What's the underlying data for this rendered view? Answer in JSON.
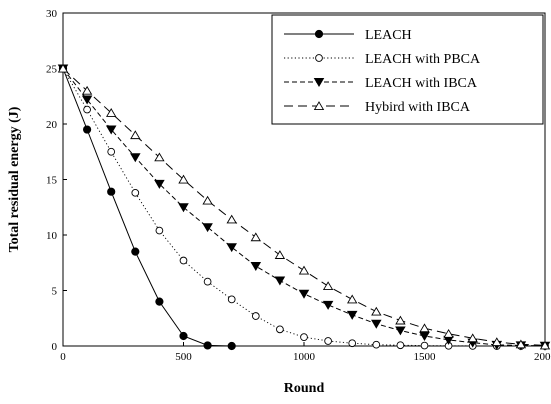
{
  "chart_data": {
    "type": "line",
    "title": "",
    "xlabel": "Round",
    "ylabel": "Total residual energy (J)",
    "xlim": [
      0,
      2000
    ],
    "ylim": [
      0,
      30
    ],
    "xticks": [
      0,
      500,
      1000,
      1500,
      2000
    ],
    "yticks": [
      0,
      5,
      10,
      15,
      20,
      25,
      30
    ],
    "grid": false,
    "legend_position": "top-right",
    "series": [
      {
        "name": "LEACH",
        "line": "solid",
        "marker": "filled-circle",
        "x": [
          0,
          100,
          200,
          300,
          400,
          500,
          600,
          700
        ],
        "y": [
          25.0,
          19.5,
          13.9,
          8.5,
          4.0,
          0.9,
          0.05,
          0.0
        ]
      },
      {
        "name": "LEACH with PBCA",
        "line": "dotted",
        "marker": "open-circle",
        "x": [
          0,
          100,
          200,
          300,
          400,
          500,
          600,
          700,
          800,
          900,
          1000,
          1100,
          1200,
          1300,
          1400,
          1500,
          1600,
          1700,
          1800,
          1900,
          2000
        ],
        "y": [
          25.0,
          21.3,
          17.5,
          13.8,
          10.4,
          7.7,
          5.8,
          4.2,
          2.7,
          1.5,
          0.8,
          0.45,
          0.25,
          0.12,
          0.07,
          0.04,
          0.02,
          0.01,
          0.0,
          0.0,
          0.0
        ]
      },
      {
        "name": "LEACH with IBCA",
        "line": "dashed",
        "marker": "filled-triangle-down",
        "x": [
          0,
          100,
          200,
          300,
          400,
          500,
          600,
          700,
          800,
          900,
          1000,
          1100,
          1200,
          1300,
          1400,
          1500,
          1600,
          1700,
          1800,
          1900,
          2000
        ],
        "y": [
          25.0,
          22.2,
          19.5,
          17.0,
          14.6,
          12.5,
          10.7,
          8.9,
          7.2,
          5.9,
          4.7,
          3.7,
          2.8,
          2.0,
          1.4,
          0.9,
          0.55,
          0.3,
          0.1,
          0.05,
          0.02
        ]
      },
      {
        "name": "Hybird with IBCA",
        "line": "long-dashed",
        "marker": "open-triangle-up",
        "x": [
          0,
          100,
          200,
          300,
          400,
          500,
          600,
          700,
          800,
          900,
          1000,
          1100,
          1200,
          1300,
          1400,
          1500,
          1600,
          1700,
          1800,
          1900,
          2000
        ],
        "y": [
          25.0,
          23.0,
          21.0,
          19.0,
          17.0,
          15.0,
          13.1,
          11.4,
          9.8,
          8.2,
          6.8,
          5.4,
          4.2,
          3.1,
          2.3,
          1.6,
          1.1,
          0.7,
          0.35,
          0.15,
          0.05
        ]
      }
    ]
  }
}
